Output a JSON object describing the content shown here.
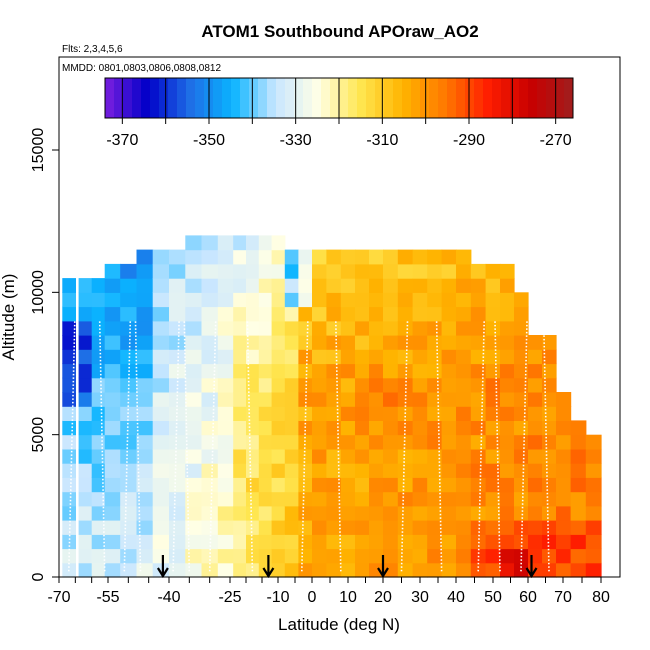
{
  "chart_data": {
    "type": "heatmap",
    "title": "ATOM1 Southbound APOraw_AO2",
    "subtitle": "Flts: 2,3,4,5,6",
    "annotation": "MMDD: 0801,0803,0806,0808,0812",
    "xlabel": "Latitude (deg N)",
    "ylabel": "Altitude (m)",
    "xlim": [
      -70,
      82
    ],
    "ylim": [
      0,
      16500
    ],
    "x_tick_labels": [
      "-70",
      "-55",
      "-40",
      "-25",
      "-10",
      "0",
      "10",
      "20",
      "30",
      "40",
      "50",
      "60",
      "70",
      "80"
    ],
    "x_tick_values": [
      -70,
      -55,
      -40,
      -25,
      -10,
      0,
      10,
      20,
      30,
      40,
      50,
      60,
      70,
      80
    ],
    "y_tick_labels": [
      "0",
      "5000",
      "10000",
      "15000"
    ],
    "y_tick_values": [
      0,
      5000,
      10000,
      15000
    ],
    "colorbar": {
      "min": -374,
      "max": -266,
      "tick_labels": [
        "-370",
        "-350",
        "-330",
        "-310",
        "-290",
        "-270"
      ],
      "tick_values": [
        -370,
        -350,
        -330,
        -310,
        -290,
        -270
      ],
      "colors": [
        "#7b1fe0",
        "#0000c8",
        "#1e6ee6",
        "#0ab4ff",
        "#c8e6ff",
        "#ffffe6",
        "#ffe650",
        "#ffb400",
        "#ff7800",
        "#ff1e00",
        "#c80000",
        "#a01e1e"
      ]
    },
    "arrows_latitude": [
      -41.5,
      -13,
      20,
      61
    ],
    "profile_lines_latitude": [
      -67,
      -56,
      -51,
      -47,
      -39,
      -35,
      -30,
      -18,
      -3,
      8,
      25,
      36,
      46,
      52,
      58,
      66
    ],
    "grid_latitudes": [
      -67,
      -62,
      -58,
      -54,
      -50,
      -46,
      -42,
      -38,
      -34,
      -30,
      -26,
      -22,
      -18,
      -14,
      -10,
      -6,
      -2,
      2,
      6,
      10,
      14,
      18,
      22,
      26,
      30,
      34,
      38,
      42,
      46,
      50,
      54,
      58,
      62,
      66,
      70,
      74,
      78
    ],
    "grid_altitudes": [
      250,
      750,
      1250,
      1750,
      2250,
      2750,
      3250,
      3750,
      4250,
      4750,
      5250,
      5750,
      6250,
      6750,
      7250,
      7750,
      8250,
      8750,
      9250,
      9750,
      10250,
      10750,
      11250,
      11750
    ],
    "grid": false
  }
}
